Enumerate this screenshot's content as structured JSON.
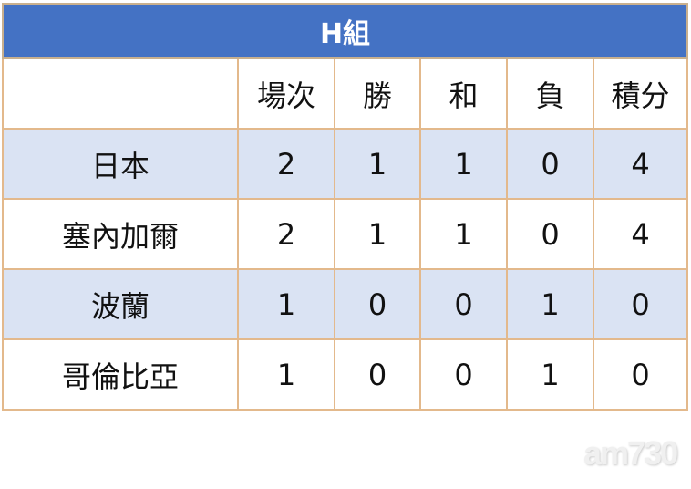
{
  "title": "H組",
  "headers": [
    "",
    "場次",
    "勝",
    "和",
    "負",
    "積分"
  ],
  "rows": [
    [
      "日本",
      "2",
      "1",
      "1",
      "0",
      "4"
    ],
    [
      "塞內加爾",
      "2",
      "1",
      "1",
      "0",
      "4"
    ],
    [
      "波蘭",
      "1",
      "0",
      "0",
      "1",
      "0"
    ],
    [
      "哥倫比亞",
      "1",
      "0",
      "0",
      "1",
      "0"
    ]
  ],
  "watermark": "am730",
  "colors": {
    "title_bg": "#4472c4",
    "alt_row_bg": "#dae3f3",
    "border": "#e3b98c"
  }
}
